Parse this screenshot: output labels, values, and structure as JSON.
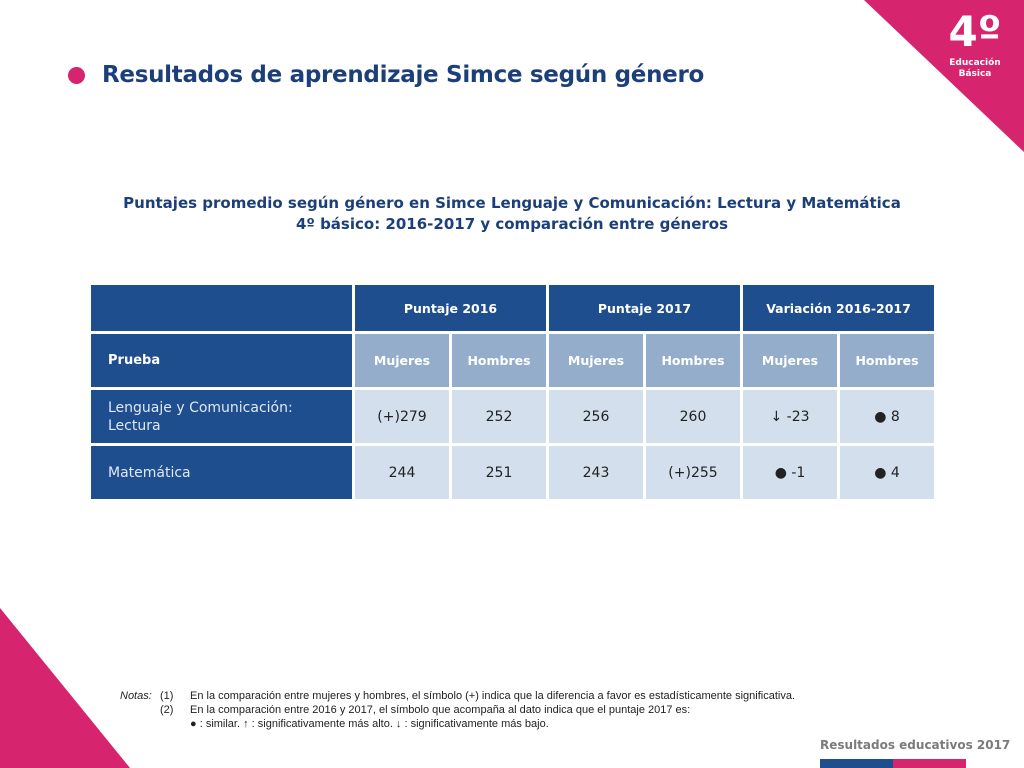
{
  "badge": {
    "grade": "4º",
    "line1": "Educación",
    "line2": "Básica"
  },
  "colors": {
    "magenta": "#d6246e",
    "navy": "#1f4e8f",
    "light_blue": "#93adcb",
    "cell": "#d3dfec",
    "title": "#1c3f7a"
  },
  "title": "Resultados de aprendizaje Simce según género",
  "subtitle": {
    "line1": "Puntajes promedio según género en Simce Lenguaje y Comunicación: Lectura y Matemática",
    "line2": "4º básico: 2016-2017 y comparación entre géneros"
  },
  "table": {
    "groups": [
      "Puntaje 2016",
      "Puntaje 2017",
      "Variación 2016-2017"
    ],
    "prueba_label": "Prueba",
    "subcols": [
      "Mujeres",
      "Hombres",
      "Mujeres",
      "Hombres",
      "Mujeres",
      "Hombres"
    ],
    "rows": [
      {
        "label_line1": "Lenguaje y Comunicación:",
        "label_line2": "Lectura",
        "values": [
          "(+)279",
          "252",
          "256",
          "260",
          "↓ -23",
          "● 8"
        ]
      },
      {
        "label_line1": "Matemática",
        "label_line2": "",
        "values": [
          "244",
          "251",
          "243",
          "(+)255",
          "● -1",
          "● 4"
        ]
      }
    ]
  },
  "notes": {
    "head": "Notas:",
    "n1_num": "(1)",
    "n1_text": "En la comparación entre mujeres y hombres, el símbolo (+) indica que la diferencia a favor es estadísticamente significativa.",
    "n2_num": "(2)",
    "n2_text": "En la comparación entre 2016 y 2017, el símbolo que acompaña al dato indica que el puntaje 2017 es:",
    "n2_symbols": "● :   similar.    ↑ :  significativamente más alto.    ↓ :   significativamente más bajo."
  },
  "footer": "Resultados educativos 2017"
}
